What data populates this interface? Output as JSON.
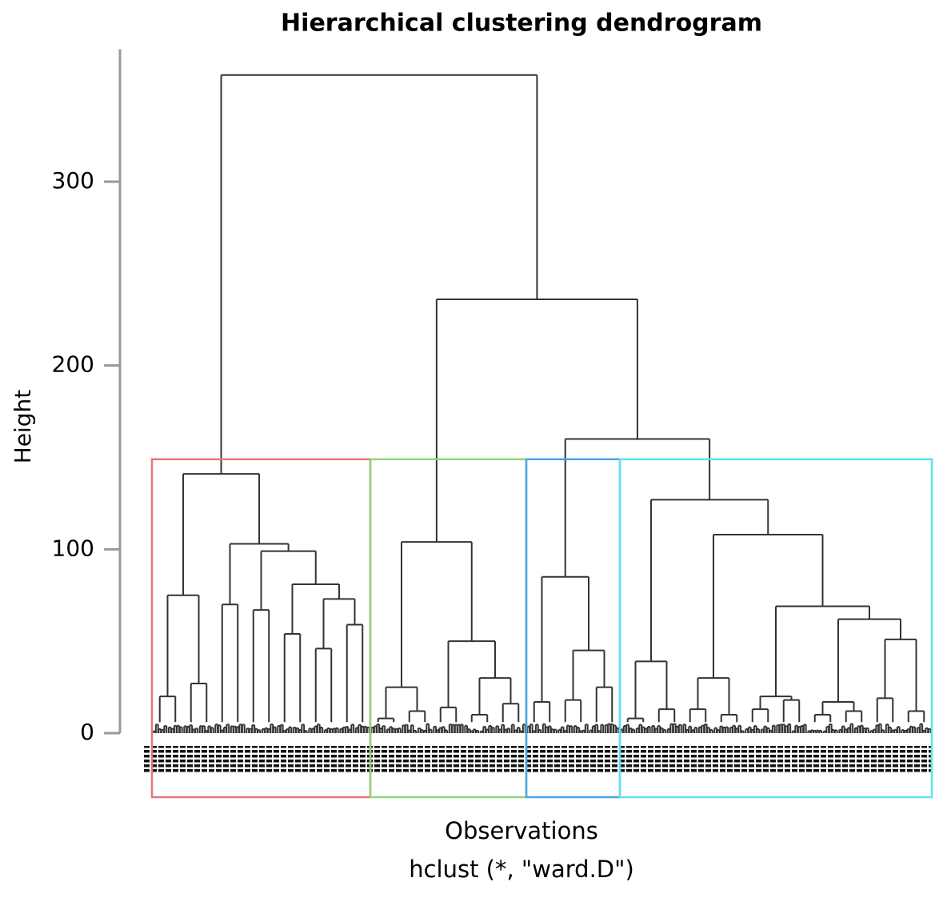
{
  "chart_data": {
    "type": "dendrogram",
    "title": "Hierarchical clustering dendrogram",
    "ylabel": "Height",
    "xlabel": "Observations",
    "subtitle": "hclust (*, \"ward.D\")",
    "ylim": [
      0,
      372
    ],
    "yticks": [
      0,
      100,
      200,
      300
    ],
    "box_height": 149,
    "tree": {
      "height": 358,
      "children": [
        {
          "height": 141,
          "box_color": "#e8737f",
          "children": [
            {
              "height": 75,
              "children": [
                {
                  "height": 20
                },
                {
                  "height": 27
                }
              ]
            },
            {
              "height": 103,
              "children": [
                {
                  "height": 70
                },
                {
                  "height": 99,
                  "children": [
                    {
                      "height": 67
                    },
                    {
                      "height": 81,
                      "children": [
                        {
                          "height": 54
                        },
                        {
                          "height": 73,
                          "children": [
                            {
                              "height": 46
                            },
                            {
                              "height": 59
                            }
                          ]
                        }
                      ]
                    }
                  ]
                }
              ]
            }
          ]
        },
        {
          "height": 236,
          "children": [
            {
              "height": 104,
              "box_color": "#8fd67a",
              "children": [
                {
                  "height": 25,
                  "children": [
                    {
                      "height": 8
                    },
                    {
                      "height": 12
                    }
                  ]
                },
                {
                  "height": 50,
                  "children": [
                    {
                      "height": 14
                    },
                    {
                      "height": 30,
                      "children": [
                        {
                          "height": 10
                        },
                        {
                          "height": 16
                        }
                      ]
                    }
                  ]
                }
              ]
            },
            {
              "height": 160,
              "children": [
                {
                  "height": 85,
                  "box_color": "#4fa3e6",
                  "children": [
                    {
                      "height": 17
                    },
                    {
                      "height": 45,
                      "children": [
                        {
                          "height": 18
                        },
                        {
                          "height": 25
                        }
                      ]
                    }
                  ]
                },
                {
                  "height": 127,
                  "box_color": "#5ee3ea",
                  "children": [
                    {
                      "height": 39,
                      "children": [
                        {
                          "height": 8
                        },
                        {
                          "height": 13
                        }
                      ]
                    },
                    {
                      "height": 108,
                      "children": [
                        {
                          "height": 30,
                          "children": [
                            {
                              "height": 13
                            },
                            {
                              "height": 10
                            }
                          ]
                        },
                        {
                          "height": 69,
                          "children": [
                            {
                              "height": 20,
                              "children": [
                                {
                                  "height": 13
                                },
                                {
                                  "height": 18
                                }
                              ]
                            },
                            {
                              "height": 62,
                              "children": [
                                {
                                  "height": 17,
                                  "children": [
                                    {
                                      "height": 10
                                    },
                                    {
                                      "height": 12
                                    }
                                  ]
                                },
                                {
                                  "height": 51,
                                  "children": [
                                    {
                                      "height": 19
                                    },
                                    {
                                      "height": 12
                                    }
                                  ]
                                }
                              ]
                            }
                          ]
                        }
                      ]
                    }
                  ]
                }
              ]
            }
          ]
        }
      ]
    }
  }
}
